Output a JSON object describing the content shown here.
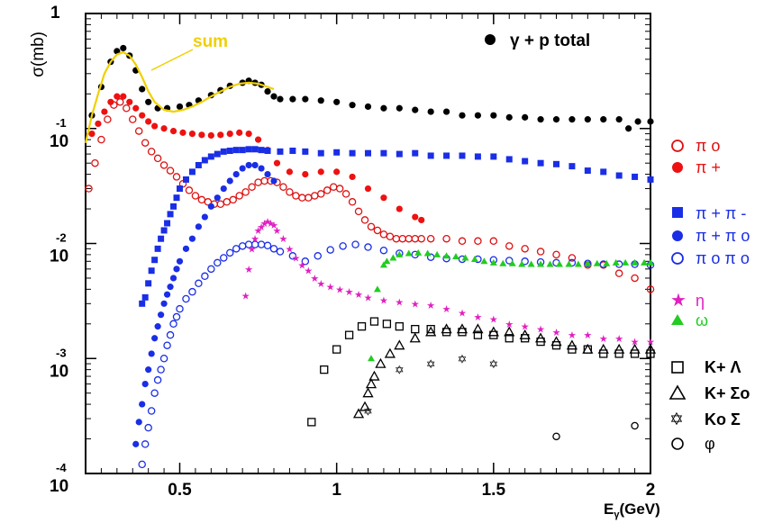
{
  "chart_data": {
    "type": "scatter",
    "title": "",
    "ylabel": "σ(mb)",
    "xlabel": "Eγ(GeV)",
    "ylabel_parts": {
      "main": "σ(mb)",
      "top_tick": "1"
    },
    "xlabel_parts": {
      "main": "E",
      "sub": "γ",
      "rest": "(GeV)"
    },
    "xlim": [
      0.2,
      2.0
    ],
    "ylim": [
      0.0001,
      1
    ],
    "yscale": "log",
    "x_ticks": [
      "0.5",
      "1",
      "1.5",
      "2"
    ],
    "x_tick_values": [
      0.5,
      1,
      1.5,
      2
    ],
    "y_ticks": [
      {
        "value": 0.1,
        "base": "10",
        "exp": "-1"
      },
      {
        "value": 0.01,
        "base": "10",
        "exp": "-2"
      },
      {
        "value": 0.001,
        "base": "10",
        "exp": "-3"
      },
      {
        "value": 0.0001,
        "base": "10",
        "exp": "-4"
      }
    ],
    "annotation": "sum",
    "colors": {
      "total": "#000000",
      "pi0": "#dd1111",
      "pip": "#ee1111",
      "pippim": "#1a2ee6",
      "pippi0": "#1a2ee6",
      "pi0pi0": "#1a2ee6",
      "eta": "#e020c0",
      "omega": "#22cc22",
      "strange": "#000000",
      "sum": "#f0d000"
    },
    "series": [
      {
        "name": "γ + p  total",
        "marker": "filled-circle",
        "color": "#000000",
        "x": [
          0.22,
          0.25,
          0.28,
          0.3,
          0.32,
          0.34,
          0.36,
          0.38,
          0.4,
          0.43,
          0.46,
          0.5,
          0.53,
          0.56,
          0.6,
          0.63,
          0.66,
          0.7,
          0.72,
          0.74,
          0.76,
          0.78,
          0.8,
          0.82,
          0.86,
          0.9,
          0.95,
          1.0,
          1.05,
          1.1,
          1.15,
          1.2,
          1.25,
          1.3,
          1.35,
          1.4,
          1.45,
          1.5,
          1.55,
          1.6,
          1.65,
          1.7,
          1.75,
          1.8,
          1.85,
          1.9,
          1.93,
          1.96,
          2.0
        ],
        "y": [
          0.13,
          0.23,
          0.38,
          0.47,
          0.5,
          0.43,
          0.32,
          0.22,
          0.17,
          0.15,
          0.15,
          0.155,
          0.16,
          0.175,
          0.195,
          0.215,
          0.235,
          0.25,
          0.26,
          0.25,
          0.24,
          0.21,
          0.19,
          0.18,
          0.18,
          0.18,
          0.175,
          0.17,
          0.16,
          0.155,
          0.15,
          0.15,
          0.145,
          0.14,
          0.14,
          0.13,
          0.13,
          0.13,
          0.125,
          0.125,
          0.12,
          0.12,
          0.12,
          0.12,
          0.12,
          0.12,
          0.1,
          0.115,
          0.115
        ]
      },
      {
        "name": "π o",
        "marker": "open-circle",
        "color": "#dd1111",
        "x": [
          0.21,
          0.23,
          0.25,
          0.27,
          0.29,
          0.31,
          0.33,
          0.35,
          0.37,
          0.39,
          0.41,
          0.43,
          0.45,
          0.47,
          0.49,
          0.51,
          0.53,
          0.55,
          0.57,
          0.59,
          0.61,
          0.63,
          0.65,
          0.67,
          0.69,
          0.71,
          0.73,
          0.75,
          0.77,
          0.79,
          0.81,
          0.83,
          0.85,
          0.87,
          0.89,
          0.91,
          0.93,
          0.95,
          0.97,
          0.99,
          1.01,
          1.03,
          1.05,
          1.07,
          1.09,
          1.11,
          1.13,
          1.15,
          1.17,
          1.19,
          1.21,
          1.23,
          1.25,
          1.27,
          1.3,
          1.35,
          1.4,
          1.45,
          1.5,
          1.55,
          1.6,
          1.65,
          1.7,
          1.75,
          1.8,
          1.85,
          1.9,
          1.95,
          2.0
        ],
        "y": [
          0.03,
          0.05,
          0.08,
          0.12,
          0.16,
          0.17,
          0.15,
          0.12,
          0.095,
          0.075,
          0.063,
          0.055,
          0.048,
          0.043,
          0.038,
          0.033,
          0.029,
          0.026,
          0.024,
          0.023,
          0.022,
          0.022,
          0.023,
          0.024,
          0.026,
          0.028,
          0.031,
          0.034,
          0.035,
          0.035,
          0.034,
          0.031,
          0.028,
          0.026,
          0.025,
          0.025,
          0.026,
          0.027,
          0.029,
          0.031,
          0.03,
          0.027,
          0.023,
          0.019,
          0.016,
          0.014,
          0.013,
          0.012,
          0.0115,
          0.011,
          0.011,
          0.011,
          0.011,
          0.011,
          0.011,
          0.011,
          0.0105,
          0.0105,
          0.0105,
          0.0095,
          0.009,
          0.0085,
          0.008,
          0.0075,
          0.0065,
          0.0065,
          0.0055,
          0.005,
          0.004
        ]
      },
      {
        "name": "π +",
        "marker": "filled-circle",
        "color": "#ee1111",
        "x": [
          0.22,
          0.24,
          0.26,
          0.28,
          0.3,
          0.32,
          0.34,
          0.36,
          0.38,
          0.4,
          0.42,
          0.45,
          0.48,
          0.51,
          0.54,
          0.57,
          0.6,
          0.63,
          0.66,
          0.69,
          0.72,
          0.75,
          0.78,
          0.81,
          0.85,
          0.9,
          0.95,
          1.0,
          1.05,
          1.1,
          1.15,
          1.2,
          1.25,
          1.27
        ],
        "y": [
          0.09,
          0.11,
          0.14,
          0.17,
          0.19,
          0.19,
          0.17,
          0.15,
          0.13,
          0.115,
          0.105,
          0.1,
          0.095,
          0.092,
          0.09,
          0.088,
          0.087,
          0.088,
          0.09,
          0.092,
          0.09,
          0.08,
          0.065,
          0.05,
          0.042,
          0.04,
          0.042,
          0.042,
          0.038,
          0.03,
          0.025,
          0.02,
          0.017,
          0.016
        ]
      },
      {
        "name": "π + π -",
        "marker": "filled-square",
        "color": "#1a2ee6",
        "x": [
          0.38,
          0.39,
          0.4,
          0.41,
          0.42,
          0.43,
          0.44,
          0.45,
          0.46,
          0.47,
          0.48,
          0.49,
          0.5,
          0.52,
          0.54,
          0.56,
          0.58,
          0.6,
          0.62,
          0.64,
          0.66,
          0.68,
          0.7,
          0.72,
          0.74,
          0.76,
          0.78,
          0.82,
          0.86,
          0.9,
          0.95,
          1.0,
          1.05,
          1.1,
          1.15,
          1.2,
          1.25,
          1.3,
          1.35,
          1.4,
          1.45,
          1.5,
          1.55,
          1.6,
          1.65,
          1.7,
          1.75,
          1.8,
          1.85,
          1.9,
          1.95,
          2.0
        ],
        "y": [
          0.003,
          0.0034,
          0.0045,
          0.0058,
          0.0072,
          0.009,
          0.011,
          0.013,
          0.015,
          0.018,
          0.021,
          0.025,
          0.03,
          0.036,
          0.042,
          0.048,
          0.053,
          0.057,
          0.06,
          0.063,
          0.064,
          0.065,
          0.065,
          0.066,
          0.066,
          0.065,
          0.064,
          0.063,
          0.064,
          0.063,
          0.061,
          0.062,
          0.061,
          0.061,
          0.061,
          0.06,
          0.061,
          0.058,
          0.058,
          0.058,
          0.057,
          0.057,
          0.054,
          0.052,
          0.05,
          0.049,
          0.047,
          0.043,
          0.042,
          0.039,
          0.038,
          0.036
        ]
      },
      {
        "name": "π + π o",
        "marker": "filled-circle",
        "color": "#1a2ee6",
        "x": [
          0.36,
          0.37,
          0.38,
          0.39,
          0.4,
          0.41,
          0.42,
          0.43,
          0.44,
          0.45,
          0.46,
          0.47,
          0.48,
          0.49,
          0.5,
          0.52,
          0.54,
          0.56,
          0.58,
          0.6,
          0.62,
          0.64,
          0.66,
          0.68,
          0.7,
          0.72,
          0.74,
          0.76,
          0.78,
          0.8
        ],
        "y": [
          0.00018,
          0.00028,
          0.0004,
          0.0006,
          0.0008,
          0.0011,
          0.0015,
          0.0019,
          0.0024,
          0.003,
          0.0036,
          0.0042,
          0.005,
          0.006,
          0.007,
          0.009,
          0.011,
          0.014,
          0.017,
          0.021,
          0.025,
          0.03,
          0.035,
          0.04,
          0.045,
          0.048,
          0.048,
          0.045,
          0.04,
          0.035
        ]
      },
      {
        "name": "π o π o",
        "marker": "open-circle",
        "color": "#1a2ee6",
        "x": [
          0.38,
          0.39,
          0.4,
          0.41,
          0.42,
          0.43,
          0.44,
          0.45,
          0.46,
          0.47,
          0.48,
          0.49,
          0.5,
          0.52,
          0.54,
          0.56,
          0.58,
          0.6,
          0.62,
          0.64,
          0.66,
          0.68,
          0.7,
          0.72,
          0.74,
          0.76,
          0.78,
          0.8,
          0.82,
          0.86,
          0.9,
          0.94,
          0.98,
          1.02,
          1.06,
          1.1,
          1.15,
          1.2,
          1.25,
          1.3,
          1.35,
          1.4,
          1.45,
          1.5,
          1.55,
          1.6,
          1.65,
          1.7,
          1.75,
          1.8,
          1.85,
          1.9,
          1.95,
          2.0
        ],
        "y": [
          0.00012,
          0.00018,
          0.00025,
          0.00035,
          0.0005,
          0.00065,
          0.0008,
          0.001,
          0.0013,
          0.0016,
          0.002,
          0.0023,
          0.0027,
          0.0033,
          0.0038,
          0.0045,
          0.0052,
          0.006,
          0.0068,
          0.0075,
          0.0083,
          0.009,
          0.0095,
          0.0098,
          0.0098,
          0.0098,
          0.0096,
          0.009,
          0.0085,
          0.0078,
          0.007,
          0.0078,
          0.0088,
          0.0095,
          0.0098,
          0.0093,
          0.0087,
          0.0082,
          0.008,
          0.0076,
          0.0074,
          0.0073,
          0.0073,
          0.0072,
          0.0071,
          0.007,
          0.0069,
          0.0068,
          0.0068,
          0.0067,
          0.0066,
          0.0066,
          0.0066,
          0.0065
        ]
      },
      {
        "name": "η",
        "marker": "filled-star",
        "color": "#e020c0",
        "x": [
          0.71,
          0.72,
          0.73,
          0.74,
          0.75,
          0.76,
          0.77,
          0.78,
          0.79,
          0.8,
          0.81,
          0.83,
          0.85,
          0.87,
          0.89,
          0.91,
          0.93,
          0.95,
          0.98,
          1.01,
          1.04,
          1.07,
          1.1,
          1.15,
          1.2,
          1.25,
          1.3,
          1.35,
          1.4,
          1.45,
          1.5,
          1.55,
          1.6,
          1.65,
          1.7,
          1.75,
          1.8,
          1.85,
          1.9,
          1.95,
          2.0
        ],
        "y": [
          0.0035,
          0.006,
          0.009,
          0.011,
          0.013,
          0.014,
          0.015,
          0.0155,
          0.015,
          0.0145,
          0.013,
          0.011,
          0.009,
          0.0075,
          0.0065,
          0.0058,
          0.005,
          0.0045,
          0.0042,
          0.004,
          0.0038,
          0.0036,
          0.0034,
          0.0032,
          0.0031,
          0.003,
          0.0029,
          0.0027,
          0.0025,
          0.0023,
          0.0022,
          0.002,
          0.0019,
          0.0018,
          0.0017,
          0.0016,
          0.0016,
          0.0015,
          0.0015,
          0.0014,
          0.0014
        ]
      },
      {
        "name": "ω",
        "marker": "filled-triangle",
        "color": "#22cc22",
        "x": [
          1.11,
          1.13,
          1.15,
          1.16,
          1.18,
          1.2,
          1.23,
          1.26,
          1.29,
          1.32,
          1.35,
          1.38,
          1.41,
          1.44,
          1.47,
          1.5,
          1.53,
          1.56,
          1.59,
          1.62,
          1.65,
          1.68,
          1.71,
          1.74,
          1.77,
          1.8,
          1.83,
          1.86,
          1.89,
          1.92,
          1.95,
          1.98,
          2.0
        ],
        "y": [
          0.001,
          0.004,
          0.0065,
          0.007,
          0.0075,
          0.008,
          0.0082,
          0.0083,
          0.0082,
          0.008,
          0.0078,
          0.0077,
          0.0075,
          0.0073,
          0.007,
          0.0068,
          0.0067,
          0.0067,
          0.0066,
          0.0066,
          0.0066,
          0.0066,
          0.0066,
          0.0066,
          0.0066,
          0.0067,
          0.0067,
          0.0067,
          0.0068,
          0.0068,
          0.0068,
          0.0068,
          0.0068
        ]
      },
      {
        "name": "K⁺ Λ",
        "marker": "open-square",
        "color": "#000000",
        "x": [
          0.92,
          0.96,
          1.0,
          1.04,
          1.08,
          1.12,
          1.16,
          1.2,
          1.25,
          1.3,
          1.35,
          1.4,
          1.45,
          1.5,
          1.55,
          1.6,
          1.65,
          1.7,
          1.75,
          1.8,
          1.85,
          1.9,
          1.95,
          2.0
        ],
        "y": [
          0.00028,
          0.0008,
          0.0012,
          0.0016,
          0.0019,
          0.0021,
          0.002,
          0.0019,
          0.0018,
          0.0018,
          0.0017,
          0.0017,
          0.0016,
          0.0016,
          0.0015,
          0.0015,
          0.0014,
          0.0013,
          0.0012,
          0.0012,
          0.0011,
          0.0011,
          0.0011,
          0.0011
        ]
      },
      {
        "name": "K⁺ Σᵒ",
        "marker": "open-triangle",
        "color": "#000000",
        "x": [
          1.07,
          1.09,
          1.1,
          1.11,
          1.12,
          1.14,
          1.17,
          1.2,
          1.25,
          1.3,
          1.35,
          1.4,
          1.45,
          1.5,
          1.55,
          1.6,
          1.65,
          1.7,
          1.75,
          1.8,
          1.85,
          1.9,
          1.95,
          2.0
        ],
        "y": [
          0.00033,
          0.00038,
          0.0005,
          0.0006,
          0.0007,
          0.0009,
          0.0011,
          0.0013,
          0.0015,
          0.0017,
          0.0018,
          0.0018,
          0.0018,
          0.0017,
          0.0017,
          0.0016,
          0.0015,
          0.0014,
          0.0013,
          0.0012,
          0.0012,
          0.0012,
          0.0012,
          0.0012
        ]
      },
      {
        "name": "Kᵒ Σ",
        "marker": "open-star",
        "color": "#000000",
        "x": [
          1.1,
          1.2,
          1.3,
          1.4,
          1.5
        ],
        "y": [
          0.00035,
          0.0008,
          0.0009,
          0.001,
          0.0009
        ]
      },
      {
        "name": "φ",
        "marker": "open-circle",
        "color": "#000000",
        "x": [
          1.7,
          1.95
        ],
        "y": [
          0.00021,
          0.00026
        ]
      }
    ],
    "sum_curve": {
      "x": [
        0.2,
        0.22,
        0.24,
        0.26,
        0.28,
        0.3,
        0.32,
        0.34,
        0.36,
        0.38,
        0.4,
        0.42,
        0.45,
        0.48,
        0.51,
        0.54,
        0.57,
        0.6,
        0.63,
        0.66,
        0.69,
        0.72,
        0.75,
        0.78,
        0.8
      ],
      "y": [
        0.075,
        0.13,
        0.2,
        0.3,
        0.38,
        0.44,
        0.46,
        0.43,
        0.36,
        0.28,
        0.21,
        0.17,
        0.145,
        0.14,
        0.145,
        0.155,
        0.17,
        0.19,
        0.21,
        0.23,
        0.245,
        0.25,
        0.245,
        0.23,
        0.22
      ]
    },
    "legend": {
      "total": "γ + p  total",
      "pi0": "π o",
      "pip": "π +",
      "pippim": "π + π -",
      "pippi0": "π + π o",
      "pi0pi0": "π o π o",
      "eta": "η",
      "omega": "ω",
      "klambda": "K+ Λ",
      "ksigma0": "K+ Σo",
      "k0sigma": "Ko Σ",
      "phi": "φ"
    }
  }
}
